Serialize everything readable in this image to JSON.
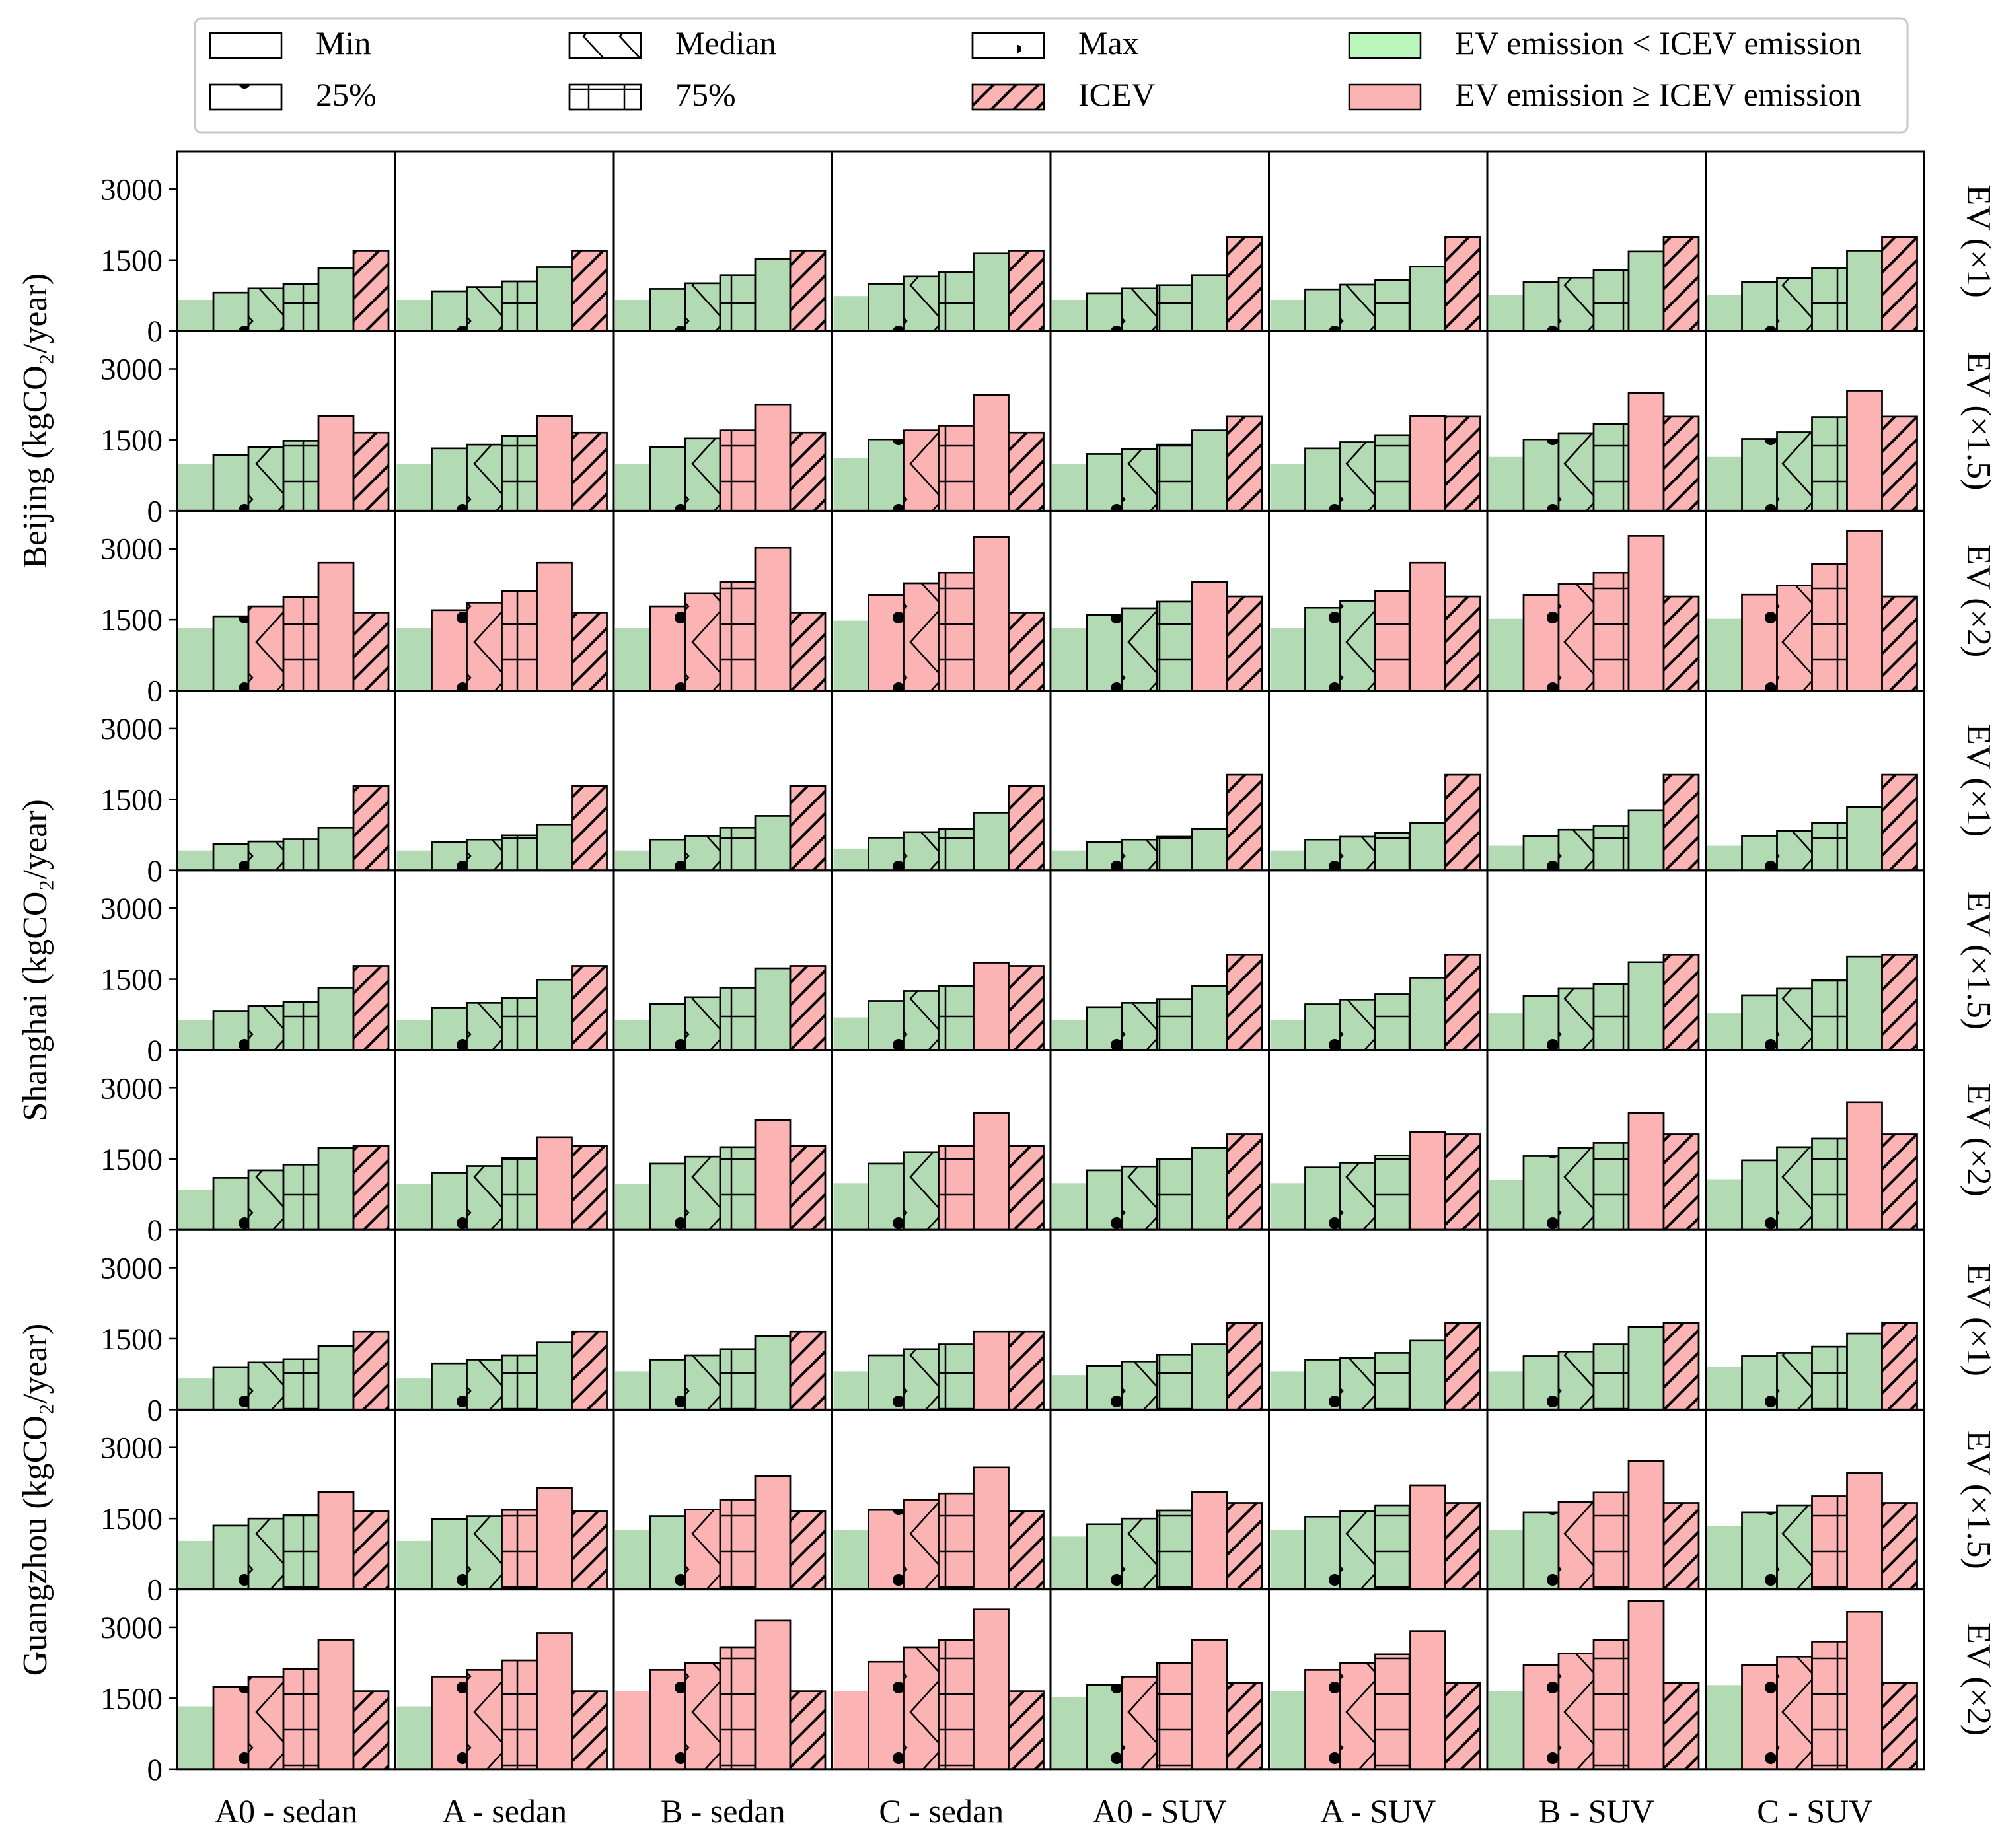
{
  "chart_data": {
    "type": "bar",
    "y_unit_label": "(kgCO₂/year)",
    "categories": [
      "A0 - sedan",
      "A - sedan",
      "B - sedan",
      "C - sedan",
      "A0 - SUV",
      "A - SUV",
      "B - SUV",
      "C - SUV"
    ],
    "bar_order": [
      "Min",
      "25%",
      "Median",
      "75%",
      "Max",
      "ICEV"
    ],
    "ylim": [
      0,
      3800
    ],
    "yticks": [
      "0",
      "1500",
      "3000"
    ],
    "legend": {
      "items": [
        {
          "label": "Min",
          "pattern": "plain"
        },
        {
          "label": "Median",
          "pattern": "median"
        },
        {
          "label": "Max",
          "pattern": "star"
        },
        {
          "label": "EV emission < ICEV emission",
          "pattern": "green"
        },
        {
          "label": "25%",
          "pattern": "dot"
        },
        {
          "label": "75%",
          "pattern": "grid"
        },
        {
          "label": "ICEV",
          "pattern": "hatch"
        },
        {
          "label": "EV emission ≥ ICEV emission",
          "pattern": "red"
        }
      ]
    },
    "colors": {
      "green": "#b3dbb3",
      "red": "#fcb3b3",
      "edge": "#000000"
    },
    "cities": [
      {
        "name": "Beijing",
        "ylabel": "Beijing (kgCO₂/year)",
        "rows": [
          {
            "label": "EV (×1)",
            "values": [
              [
                660,
                810,
                900,
                990,
                1330,
                1700
              ],
              [
                660,
                840,
                930,
                1050,
                1350,
                1700
              ],
              [
                660,
                890,
                1010,
                1180,
                1530,
                1700
              ],
              [
                740,
                1000,
                1150,
                1240,
                1640,
                1700
              ],
              [
                660,
                800,
                900,
                970,
                1180,
                1990
              ],
              [
                660,
                880,
                980,
                1080,
                1360,
                1990
              ],
              [
                760,
                1030,
                1130,
                1290,
                1680,
                1990
              ],
              [
                760,
                1040,
                1120,
                1330,
                1700,
                1990
              ]
            ]
          },
          {
            "label": "EV (×1.5)",
            "values": [
              [
                990,
                1180,
                1350,
                1480,
                2000,
                1650
              ],
              [
                990,
                1320,
                1400,
                1580,
                2000,
                1650
              ],
              [
                990,
                1350,
                1530,
                1700,
                2250,
                1650
              ],
              [
                1110,
                1510,
                1700,
                1800,
                2450,
                1650
              ],
              [
                990,
                1200,
                1300,
                1400,
                1700,
                1990
              ],
              [
                990,
                1320,
                1450,
                1600,
                2000,
                1990
              ],
              [
                1140,
                1510,
                1640,
                1830,
                2490,
                1990
              ],
              [
                1140,
                1520,
                1660,
                1980,
                2540,
                1990
              ]
            ]
          },
          {
            "label": "EV (×2)",
            "values": [
              [
                1320,
                1570,
                1780,
                1980,
                2700,
                1650
              ],
              [
                1320,
                1700,
                1860,
                2100,
                2700,
                1650
              ],
              [
                1320,
                1780,
                2050,
                2300,
                3020,
                1650
              ],
              [
                1480,
                2020,
                2270,
                2490,
                3250,
                1650
              ],
              [
                1320,
                1600,
                1740,
                1880,
                2300,
                1990
              ],
              [
                1320,
                1750,
                1900,
                2100,
                2700,
                1990
              ],
              [
                1520,
                2020,
                2250,
                2490,
                3270,
                1990
              ],
              [
                1520,
                2030,
                2220,
                2680,
                3380,
                1990
              ]
            ]
          }
        ]
      },
      {
        "name": "Shanghai",
        "ylabel": "Shanghai (kgCO₂/year)",
        "rows": [
          {
            "label": "EV (×1)",
            "values": [
              [
                420,
                560,
                610,
                660,
                900,
                1780
              ],
              [
                420,
                600,
                650,
                740,
                970,
                1780
              ],
              [
                420,
                650,
                730,
                900,
                1150,
                1780
              ],
              [
                460,
                690,
                810,
                880,
                1220,
                1780
              ],
              [
                420,
                600,
                650,
                710,
                880,
                2020
              ],
              [
                420,
                650,
                710,
                790,
                1000,
                2020
              ],
              [
                520,
                720,
                860,
                940,
                1270,
                2020
              ],
              [
                520,
                730,
                840,
                1000,
                1340,
                2020
              ]
            ]
          },
          {
            "label": "EV (×1.5)",
            "values": [
              [
                640,
                830,
                930,
                1020,
                1320,
                1780
              ],
              [
                640,
                900,
                1000,
                1100,
                1490,
                1780
              ],
              [
                640,
                980,
                1120,
                1320,
                1730,
                1780
              ],
              [
                690,
                1040,
                1250,
                1360,
                1850,
                1780
              ],
              [
                640,
                910,
                1000,
                1080,
                1360,
                2020
              ],
              [
                640,
                970,
                1070,
                1180,
                1530,
                2020
              ],
              [
                780,
                1150,
                1300,
                1400,
                1860,
                2020
              ],
              [
                780,
                1160,
                1300,
                1490,
                1980,
                2020
              ]
            ]
          },
          {
            "label": "EV (×2)",
            "values": [
              [
                850,
                1100,
                1260,
                1380,
                1730,
                1780
              ],
              [
                970,
                1210,
                1350,
                1520,
                1960,
                1780
              ],
              [
                980,
                1400,
                1550,
                1750,
                2320,
                1780
              ],
              [
                990,
                1400,
                1640,
                1780,
                2470,
                1780
              ],
              [
                990,
                1260,
                1340,
                1500,
                1740,
                2020
              ],
              [
                990,
                1320,
                1420,
                1570,
                2070,
                2020
              ],
              [
                1060,
                1560,
                1740,
                1840,
                2470,
                2020
              ],
              [
                1070,
                1470,
                1750,
                1930,
                2700,
                2020
              ]
            ]
          }
        ]
      },
      {
        "name": "Guangzhou",
        "ylabel": "Guangzhou (kgCO₂/year)",
        "rows": [
          {
            "label": "EV (×1)",
            "values": [
              [
                660,
                900,
                1000,
                1070,
                1350,
                1650
              ],
              [
                660,
                980,
                1060,
                1150,
                1420,
                1650
              ],
              [
                810,
                1060,
                1150,
                1280,
                1560,
                1650
              ],
              [
                810,
                1150,
                1280,
                1380,
                1650,
                1650
              ],
              [
                730,
                930,
                1020,
                1160,
                1380,
                1830
              ],
              [
                810,
                1060,
                1100,
                1200,
                1460,
                1830
              ],
              [
                810,
                1130,
                1230,
                1380,
                1750,
                1830
              ],
              [
                900,
                1130,
                1200,
                1330,
                1610,
                1830
              ]
            ]
          },
          {
            "label": "EV (×1.5)",
            "values": [
              [
                1030,
                1350,
                1500,
                1580,
                2060,
                1650
              ],
              [
                1030,
                1490,
                1550,
                1680,
                2140,
                1650
              ],
              [
                1260,
                1550,
                1690,
                1900,
                2400,
                1650
              ],
              [
                1260,
                1680,
                1900,
                2030,
                2580,
                1650
              ],
              [
                1120,
                1380,
                1500,
                1670,
                2060,
                1830
              ],
              [
                1260,
                1540,
                1650,
                1780,
                2200,
                1830
              ],
              [
                1260,
                1630,
                1850,
                2050,
                2720,
                1830
              ],
              [
                1340,
                1630,
                1780,
                1970,
                2460,
                1830
              ]
            ]
          },
          {
            "label": "EV (×2)",
            "values": [
              [
                1330,
                1740,
                1960,
                2120,
                2740,
                1650
              ],
              [
                1330,
                1960,
                2100,
                2300,
                2880,
                1650
              ],
              [
                1650,
                2100,
                2250,
                2580,
                3140,
                1650
              ],
              [
                1650,
                2270,
                2580,
                2730,
                3380,
                1650
              ],
              [
                1520,
                1780,
                1960,
                2250,
                2740,
                1830
              ],
              [
                1650,
                2100,
                2250,
                2430,
                2920,
                1830
              ],
              [
                1650,
                2200,
                2450,
                2730,
                3560,
                1830
              ],
              [
                1780,
                2200,
                2380,
                2700,
                3330,
                1830
              ]
            ]
          }
        ]
      }
    ]
  }
}
